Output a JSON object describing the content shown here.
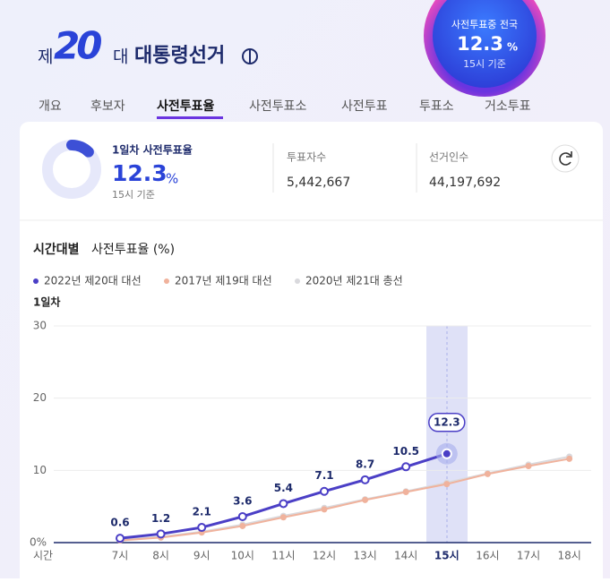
{
  "header": {
    "prefix": "제",
    "number": "20",
    "suffix": "대",
    "title": "대통령선거",
    "badge": {
      "label": "사전투표중 전국",
      "rate": 12.3,
      "unit": "%",
      "note": "15시 기준"
    }
  },
  "tabs": [
    "개요",
    "후보자",
    "사전투표율",
    "사전투표소",
    "사전투표",
    "투표소",
    "거소투표"
  ],
  "summary": {
    "label": "1일차 사전투표율",
    "rate": 12.3,
    "unit": "%",
    "note": "15시 기준",
    "voters_label": "투표자수",
    "voters": "5,442,667",
    "electors_label": "선거인수",
    "electors": "44,197,692"
  },
  "chart_data": {
    "type": "line",
    "title": "시간대별",
    "subtitle": "사전투표율 (%)",
    "day": "1일차",
    "x_label": "시간",
    "categories": [
      "7시",
      "8시",
      "9시",
      "10시",
      "11시",
      "12시",
      "13시",
      "14시",
      "15시",
      "16시",
      "17시",
      "18시"
    ],
    "series": [
      {
        "name": "2022년 제20대 대선",
        "color": "#4b3fc6",
        "values": [
          0.6,
          1.2,
          2.1,
          3.6,
          5.4,
          7.1,
          8.7,
          10.5,
          12.3,
          null,
          null,
          null
        ]
      },
      {
        "name": "2017년 제19대 대선",
        "color": "#f0b29c",
        "values": [
          0.3,
          0.7,
          1.4,
          2.3,
          3.5,
          4.6,
          5.9,
          7.0,
          8.1,
          9.5,
          10.6,
          11.6
        ]
      },
      {
        "name": "2020년 제21대 총선",
        "color": "#d9d9dd",
        "values": [
          0.4,
          0.8,
          1.5,
          2.5,
          3.7,
          4.8,
          6.0,
          7.1,
          8.3,
          9.6,
          10.8,
          11.9
        ]
      }
    ],
    "ylim": [
      0,
      30
    ],
    "yticks": [
      {
        "value": 0,
        "label": "0%"
      },
      10,
      20,
      30
    ],
    "grid": true
  }
}
